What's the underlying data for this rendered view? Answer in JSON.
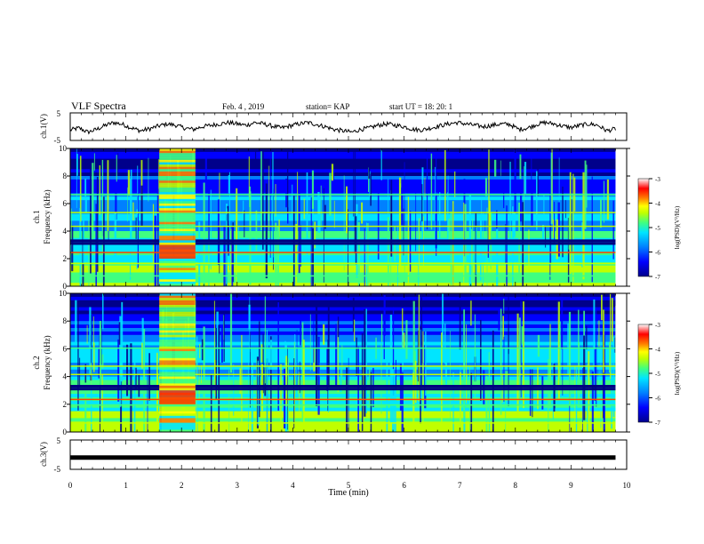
{
  "header": {
    "title": "VLF Spectra",
    "date": "Feb. 4 , 2019",
    "station": "station= KAP",
    "start": "start  UT =   18: 20: 1"
  },
  "colors": {
    "waveform": "#000000",
    "colormap": [
      "#00008b",
      "#0000ff",
      "#0080ff",
      "#00e5ff",
      "#40ff80",
      "#c0ff00",
      "#ffff00",
      "#ff8000",
      "#ff0000",
      "#ffffff"
    ]
  },
  "chart_data": [
    {
      "type": "line",
      "panel": "ch1-waveform",
      "ylabel": "ch.1(V)",
      "ylim": [
        -5,
        5
      ],
      "yticks": [
        "5",
        "-5"
      ],
      "xlim": [
        0,
        10
      ],
      "values": [
        -1.2,
        -0.5,
        -2,
        -1,
        0.5,
        1.5,
        0.8,
        -0.5,
        -1.5,
        -0.8,
        0.2,
        1,
        0.5,
        -0.5,
        -1,
        0,
        0.5,
        1,
        1.5,
        1,
        0.5,
        1.5,
        1,
        0.2,
        -0.5,
        0.3,
        1,
        1.5,
        0.8,
        0,
        -1,
        -1.5,
        -2,
        -1,
        -0.5,
        0.5,
        1,
        0.5,
        0,
        -1,
        -1.2,
        -0.5,
        0.3,
        1,
        1.5,
        1,
        0.5,
        0,
        0.5,
        1,
        0.8,
        -1,
        -0.5,
        0.8,
        1.5,
        1,
        0.2,
        -0.3,
        0.5,
        1,
        0.5,
        -1.5,
        -0.8
      ]
    },
    {
      "type": "heatmap",
      "panel": "ch1-spectrogram",
      "ylabel": "ch.1\nFrequency (kHz)",
      "ylim": [
        0,
        10
      ],
      "yticks": [
        "0",
        "2",
        "4",
        "6",
        "8",
        "10"
      ],
      "xlim": [
        0,
        10
      ],
      "burst_minutes": [
        1.6,
        2.25
      ],
      "bands_khz": [
        3.1,
        3.3,
        2.4,
        5.3,
        6.6,
        4.3,
        0.7,
        1.6
      ],
      "colorbar": {
        "label": "log(PSD)(V²/Hz)",
        "range": [
          -7,
          -3
        ],
        "ticks": [
          "-3",
          "-4",
          "-5",
          "-6",
          "-7"
        ]
      }
    },
    {
      "type": "heatmap",
      "panel": "ch2-spectrogram",
      "ylabel": "ch.2\nFrequency (kHz)",
      "ylim": [
        0,
        10
      ],
      "yticks": [
        "0",
        "2",
        "4",
        "6",
        "8",
        "10"
      ],
      "xlim": [
        0,
        10
      ],
      "burst_minutes": [
        1.6,
        2.25
      ],
      "bands_khz": [
        3.1,
        3.3,
        2.3,
        4.7,
        6.0,
        0.6,
        1.9,
        4.1
      ],
      "colorbar": {
        "label": "log(PSD)(V²/Hz)",
        "range": [
          -7,
          -3
        ],
        "ticks": [
          "-3",
          "-4",
          "-5",
          "-6",
          "-7"
        ]
      }
    },
    {
      "type": "line",
      "panel": "ch3-waveform",
      "ylabel": "ch.3(V)",
      "ylim": [
        -5,
        5
      ],
      "yticks": [
        "5",
        "-5"
      ],
      "xlim": [
        0,
        10
      ],
      "values": [
        -1,
        -1
      ]
    }
  ],
  "x_axis": {
    "label": "Time (min)",
    "ticks": [
      "0",
      "1",
      "2",
      "3",
      "4",
      "5",
      "6",
      "7",
      "8",
      "9",
      "10"
    ]
  }
}
